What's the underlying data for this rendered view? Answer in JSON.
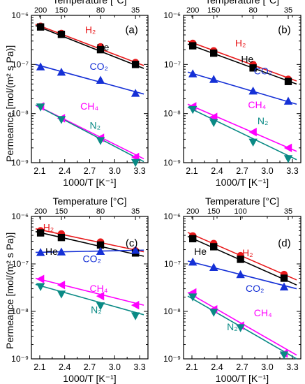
{
  "shared": {
    "top_axis_label": "Temperature [°C]",
    "bottom_axis_label": "1000/T [K⁻¹]",
    "y_axis_label": "Permeance [mol/(m² s Pa)]",
    "colors": {
      "H2": "#e8191b",
      "He": "#000000",
      "CO2": "#1530d6",
      "CH4": "#ff00ff",
      "N2": "#0a8a85"
    }
  },
  "chart_data": [
    {
      "panel": "(a)",
      "type": "scatter",
      "xlabel": "1000/T [K⁻¹]",
      "top_xlabel": "Temperature [°C]",
      "ylabel": "Permeance [mol/(m² s Pa)]",
      "y_scale": "log",
      "ylim": [
        1e-09,
        1e-06
      ],
      "xlim": [
        2.0,
        3.4
      ],
      "x_ticks": [
        "2.1",
        "2.4",
        "2.7",
        "3.0",
        "3.3"
      ],
      "y_ticks": [
        "10⁻⁹",
        "10⁻⁸",
        "10⁻⁷",
        "10⁻⁶"
      ],
      "top_ticks": [
        {
          "label": "200",
          "x": 2.11
        },
        {
          "label": "150",
          "x": 2.36
        },
        {
          "label": "80",
          "x": 2.83
        },
        {
          "label": "35",
          "x": 3.25
        }
      ],
      "series": [
        {
          "name": "H2",
          "label": "H₂",
          "marker": "circle",
          "x": [
            2.11,
            2.36,
            2.83,
            3.25
          ],
          "y": [
            6e-07,
            4.3e-07,
            2.3e-07,
            1.1e-07
          ],
          "fit_y": [
            6.6e-07,
            9.5e-08
          ]
        },
        {
          "name": "He",
          "label": "He",
          "marker": "square",
          "x": [
            2.11,
            2.36,
            2.83,
            3.25
          ],
          "y": [
            5.8e-07,
            4.1e-07,
            2e-07,
            1e-07
          ],
          "fit_y": [
            6.2e-07,
            8.3e-08
          ]
        },
        {
          "name": "CO2",
          "label": "CO₂",
          "marker": "triangle-up",
          "x": [
            2.11,
            2.36,
            2.83,
            3.25
          ],
          "y": [
            9e-08,
            7e-08,
            4.8e-08,
            2.6e-08
          ],
          "fit_y": [
            1e-07,
            2.5e-08
          ]
        },
        {
          "name": "CH4",
          "label": "CH₄",
          "marker": "triangle-left",
          "x": [
            2.11,
            2.36,
            2.83,
            3.25
          ],
          "y": [
            1.4e-08,
            8e-09,
            3.2e-09,
            1.3e-09
          ],
          "fit_y": [
            1.5e-08,
            1.2e-09
          ]
        },
        {
          "name": "N2",
          "label": "N₂",
          "marker": "triangle-down",
          "x": [
            2.11,
            2.36,
            2.83,
            3.25
          ],
          "y": [
            1.35e-08,
            7.5e-09,
            2.8e-09,
            1e-09
          ],
          "fit_y": [
            1.5e-08,
            1.05e-09
          ]
        }
      ]
    },
    {
      "panel": "(b)",
      "type": "scatter",
      "xlabel": "1000/T [K⁻¹]",
      "top_xlabel": "Temperature [°C]",
      "ylabel": "",
      "y_scale": "log",
      "ylim": [
        1e-09,
        1e-06
      ],
      "xlim": [
        2.0,
        3.4
      ],
      "x_ticks": [
        "2.1",
        "2.4",
        "2.7",
        "3.0",
        "3.3"
      ],
      "y_ticks": [
        "10⁻⁹",
        "10⁻⁸",
        "10⁻⁷",
        "10⁻⁶"
      ],
      "top_ticks": [
        {
          "label": "200",
          "x": 2.11
        },
        {
          "label": "150",
          "x": 2.36
        },
        {
          "label": "80",
          "x": 2.83
        },
        {
          "label": "35",
          "x": 3.25
        }
      ],
      "series": [
        {
          "name": "H2",
          "label": "H₂",
          "marker": "circle",
          "x": [
            2.11,
            2.36,
            2.83,
            3.25
          ],
          "y": [
            2.7e-07,
            1.9e-07,
            1e-07,
            5e-08
          ],
          "fit_y": [
            3e-07,
            4.6e-08
          ]
        },
        {
          "name": "He",
          "label": "He",
          "marker": "square",
          "x": [
            2.11,
            2.36,
            2.83,
            3.25
          ],
          "y": [
            2.4e-07,
            1.7e-07,
            8.5e-08,
            4.5e-08
          ],
          "fit_y": [
            2.6e-07,
            4e-08
          ]
        },
        {
          "name": "CO2",
          "label": "CO₂",
          "marker": "triangle-up",
          "x": [
            2.11,
            2.36,
            2.83,
            3.25
          ],
          "y": [
            6.5e-08,
            5e-08,
            2.9e-08,
            1.8e-08
          ],
          "fit_y": [
            7e-08,
            1.55e-08
          ]
        },
        {
          "name": "CH4",
          "label": "CH₄",
          "marker": "triangle-left",
          "x": [
            2.11,
            2.36,
            2.83,
            3.25
          ],
          "y": [
            1.4e-08,
            8.5e-09,
            4.2e-09,
            2e-09
          ],
          "fit_y": [
            1.55e-08,
            1.7e-09
          ]
        },
        {
          "name": "N2",
          "label": "N₂",
          "marker": "triangle-down",
          "x": [
            2.11,
            2.36,
            2.83,
            3.25
          ],
          "y": [
            1.2e-08,
            6.5e-09,
            2.6e-09,
            1.2e-09
          ],
          "fit_y": [
            1.35e-08,
            1.15e-09
          ]
        }
      ]
    },
    {
      "panel": "(c)",
      "type": "scatter",
      "xlabel": "1000/T [K⁻¹]",
      "top_xlabel": "Temperature [°C]",
      "ylabel": "Permeance [mol/(m² s Pa)]",
      "y_scale": "log",
      "ylim": [
        1e-09,
        1e-06
      ],
      "xlim": [
        2.0,
        3.4
      ],
      "x_ticks": [
        "2.1",
        "2.4",
        "2.7",
        "3.0",
        "3.3"
      ],
      "y_ticks": [
        "10⁻⁹",
        "10⁻⁸",
        "10⁻⁷",
        "10⁻⁶"
      ],
      "top_ticks": [
        {
          "label": "200",
          "x": 2.11
        },
        {
          "label": "150",
          "x": 2.36
        },
        {
          "label": "80",
          "x": 2.83
        },
        {
          "label": "35",
          "x": 3.25
        }
      ],
      "series": [
        {
          "name": "H2",
          "label": "H₂",
          "marker": "circle",
          "x": [
            2.11,
            2.36,
            2.83,
            3.25
          ],
          "y": [
            5e-07,
            4.3e-07,
            2.9e-07,
            1.9e-07
          ],
          "fit_y": [
            5.5e-07,
            1.8e-07
          ]
        },
        {
          "name": "He",
          "label": "He",
          "marker": "square",
          "x": [
            2.11,
            2.36,
            2.83,
            3.25
          ],
          "y": [
            4.5e-07,
            3.6e-07,
            2.5e-07,
            1.7e-07
          ],
          "fit_y": [
            4.8e-07,
            1.45e-07
          ]
        },
        {
          "name": "CO2",
          "label": "CO₂",
          "marker": "triangle-up",
          "x": [
            2.11,
            2.36,
            2.83,
            3.25
          ],
          "y": [
            1.75e-07,
            1.8e-07,
            1.85e-07,
            1.95e-07
          ],
          "fit_y": [
            1.75e-07,
            1.95e-07
          ]
        },
        {
          "name": "CH4",
          "label": "CH₄",
          "marker": "triangle-left",
          "x": [
            2.11,
            2.36,
            2.83,
            3.25
          ],
          "y": [
            4.8e-08,
            3.6e-08,
            2.1e-08,
            1.35e-08
          ],
          "fit_y": [
            5e-08,
            1.35e-08
          ]
        },
        {
          "name": "N2",
          "label": "N₂",
          "marker": "triangle-down",
          "x": [
            2.11,
            2.36,
            2.83,
            3.25
          ],
          "y": [
            3.3e-08,
            2.3e-08,
            1.3e-08,
            8e-09
          ],
          "fit_y": [
            3.7e-08,
            8.5e-09
          ]
        }
      ]
    },
    {
      "panel": "(d)",
      "type": "scatter",
      "xlabel": "1000/T [K⁻¹]",
      "top_xlabel": "Temperature [°C]",
      "ylabel": "",
      "y_scale": "log",
      "ylim": [
        1e-09,
        1e-06
      ],
      "xlim": [
        2.0,
        3.4
      ],
      "x_ticks": [
        "2.1",
        "2.4",
        "2.7",
        "3.0",
        "3.3"
      ],
      "y_ticks": [
        "10⁻⁹",
        "10⁻⁸",
        "10⁻⁷",
        "10⁻⁶"
      ],
      "top_ticks": [
        {
          "label": "200",
          "x": 2.11
        },
        {
          "label": "150",
          "x": 2.36
        },
        {
          "label": "100",
          "x": 2.68
        },
        {
          "label": "35",
          "x": 3.25
        }
      ],
      "series": [
        {
          "name": "H2",
          "label": "H₂",
          "marker": "circle",
          "x": [
            2.11,
            2.36,
            2.68,
            3.2
          ],
          "y": [
            3.9e-07,
            2.7e-07,
            1.5e-07,
            6e-08
          ],
          "fit_y": [
            4.6e-07,
            4.6e-08
          ]
        },
        {
          "name": "He",
          "label": "He",
          "marker": "square",
          "x": [
            2.11,
            2.36,
            2.68,
            3.2
          ],
          "y": [
            3.4e-07,
            2.3e-07,
            1.25e-07,
            5e-08
          ],
          "fit_y": [
            3.8e-07,
            3.6e-08
          ]
        },
        {
          "name": "CO2",
          "label": "CO₂",
          "marker": "triangle-up",
          "x": [
            2.11,
            2.36,
            2.68,
            3.2
          ],
          "y": [
            1.1e-07,
            8.5e-08,
            6e-08,
            3.3e-08
          ],
          "fit_y": [
            1.15e-07,
            3e-08
          ]
        },
        {
          "name": "CH4",
          "label": "CH₄",
          "marker": "triangle-left",
          "x": [
            2.11,
            2.36,
            2.68,
            3.2
          ],
          "y": [
            2.5e-08,
            1.1e-08,
            5e-09,
            1.3e-09
          ],
          "fit_y": [
            2.5e-08,
            1.2e-09
          ]
        },
        {
          "name": "N2",
          "label": "N₂",
          "marker": "triangle-down",
          "x": [
            2.11,
            2.36,
            2.68,
            3.2
          ],
          "y": [
            2e-08,
            9.5e-09,
            4.5e-09,
            1.2e-09
          ],
          "fit_y": [
            2.1e-08,
            1e-09
          ]
        }
      ]
    }
  ]
}
